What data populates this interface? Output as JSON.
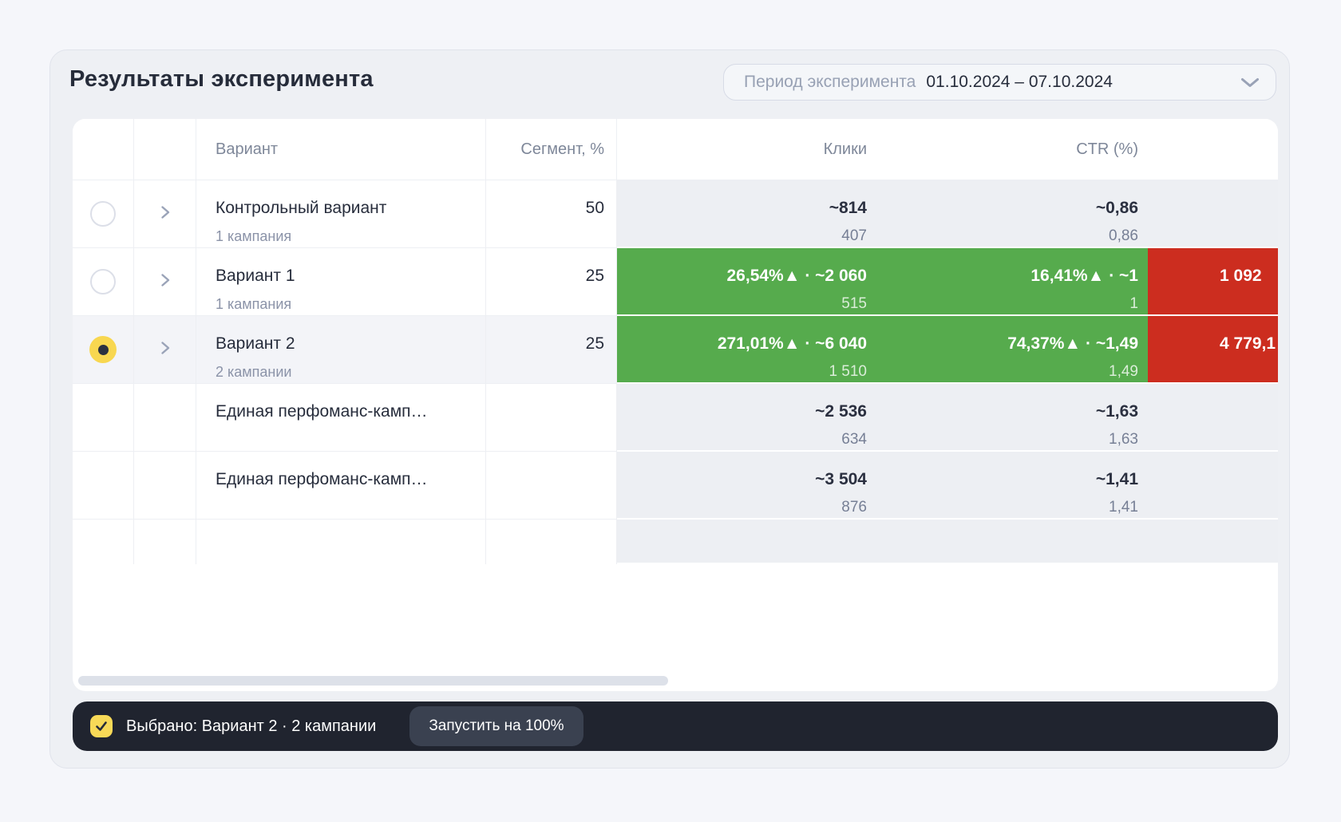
{
  "title": "Результаты эксперимента",
  "period": {
    "label": "Период эксперимента",
    "value": "01.10.2024 – 07.10.2024"
  },
  "table": {
    "headers": {
      "variant": "Вариант",
      "segment": "Сегмент, %",
      "clicks": "Клики",
      "ctr": "CTR (%)"
    },
    "rows": [
      {
        "type": "variant",
        "selected": false,
        "name": "Контрольный вариант",
        "sub": "1 кампания",
        "segment": "50",
        "clicks": {
          "value": "~814",
          "sub": "407",
          "tone": "neutral"
        },
        "ctr": {
          "value": "~0,86",
          "sub": "0,86",
          "tone": "neutral"
        },
        "cost": {
          "value": "",
          "sub": "",
          "tone": "neutral"
        }
      },
      {
        "type": "variant",
        "selected": false,
        "name": "Вариант 1",
        "sub": "1 кампания",
        "segment": "25",
        "clicks": {
          "value": "26,54%▲ · ~2 060",
          "sub": "515",
          "tone": "positive"
        },
        "ctr": {
          "value": "16,41%▲ · ~1",
          "sub": "1",
          "tone": "positive"
        },
        "cost": {
          "value": "1 092",
          "sub": "",
          "tone": "negative"
        }
      },
      {
        "type": "variant",
        "selected": true,
        "name": "Вариант 2",
        "sub": "2 кампании",
        "segment": "25",
        "clicks": {
          "value": "271,01%▲ · ~6 040",
          "sub": "1 510",
          "tone": "positive"
        },
        "ctr": {
          "value": "74,37%▲ · ~1,49",
          "sub": "1,49",
          "tone": "positive"
        },
        "cost": {
          "value": "4 779,1",
          "sub": "",
          "tone": "negative"
        }
      },
      {
        "type": "campaign",
        "selected": false,
        "name": "Единая перфоманс-камп…",
        "sub": "",
        "segment": "",
        "clicks": {
          "value": "~2 536",
          "sub": "634",
          "tone": "neutral"
        },
        "ctr": {
          "value": "~1,63",
          "sub": "1,63",
          "tone": "neutral"
        },
        "cost": {
          "value": "",
          "sub": "",
          "tone": "neutral"
        }
      },
      {
        "type": "campaign",
        "selected": false,
        "name": "Единая перфоманс-камп…",
        "sub": "",
        "segment": "",
        "clicks": {
          "value": "~3 504",
          "sub": "876",
          "tone": "neutral"
        },
        "ctr": {
          "value": "~1,41",
          "sub": "1,41",
          "tone": "neutral"
        },
        "cost": {
          "value": "",
          "sub": "",
          "tone": "neutral"
        }
      }
    ]
  },
  "footer": {
    "selected_text": "Выбрано: Вариант 2 · 2 кампании",
    "launch_button": "Запустить на 100%"
  },
  "colors": {
    "positive": "#56ab4d",
    "negative": "#cc2d1f",
    "selected_radio": "#f8d750",
    "footer_bg": "#20242f",
    "page_bg": "#f5f6fa",
    "card_bg": "#eef0f4",
    "metric_bg": "#edeff3",
    "text_dark": "#262c3a",
    "text_muted": "#7e8799"
  }
}
